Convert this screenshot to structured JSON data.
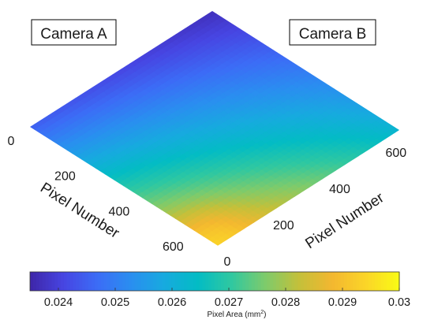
{
  "chart_data": {
    "type": "heatmap",
    "view": "isometric-surface",
    "annotations": [
      "Camera A",
      "Camera B"
    ],
    "x_axis": {
      "label": "Pixel Number",
      "range": [
        0,
        640
      ],
      "ticks": [
        0,
        200,
        400,
        600
      ],
      "tick_labels": [
        "0",
        "200",
        "400",
        "600"
      ]
    },
    "y_axis": {
      "label": "Pixel Number",
      "range": [
        0,
        640
      ],
      "ticks": [
        0,
        200,
        400,
        600
      ],
      "tick_labels": [
        "0",
        "200",
        "400",
        "600"
      ]
    },
    "colorbar": {
      "label_main": "Pixel Area (mm",
      "label_sup": "2",
      "label_close": ")",
      "range": [
        0.0235,
        0.03
      ],
      "ticks": [
        0.024,
        0.025,
        0.026,
        0.027,
        0.028,
        0.029,
        0.03
      ],
      "tick_labels": [
        "0.024",
        "0.025",
        "0.026",
        "0.027",
        "0.028",
        "0.029",
        "0.03"
      ],
      "colormap": "parula"
    },
    "surface_values": {
      "corner_far": 0.0237,
      "corner_camera_a": 0.0245,
      "corner_camera_b": 0.0262,
      "corner_near": 0.0292,
      "near_peak": 0.0296
    },
    "colors": {
      "colormap_stops": [
        "#3e26a8",
        "#4745e2",
        "#3c6cf6",
        "#2a8ef0",
        "#17aadf",
        "#03bcc4",
        "#30c8a0",
        "#7dcb6c",
        "#c3c03a",
        "#f3b730",
        "#fbd528",
        "#f9fb15"
      ]
    }
  }
}
